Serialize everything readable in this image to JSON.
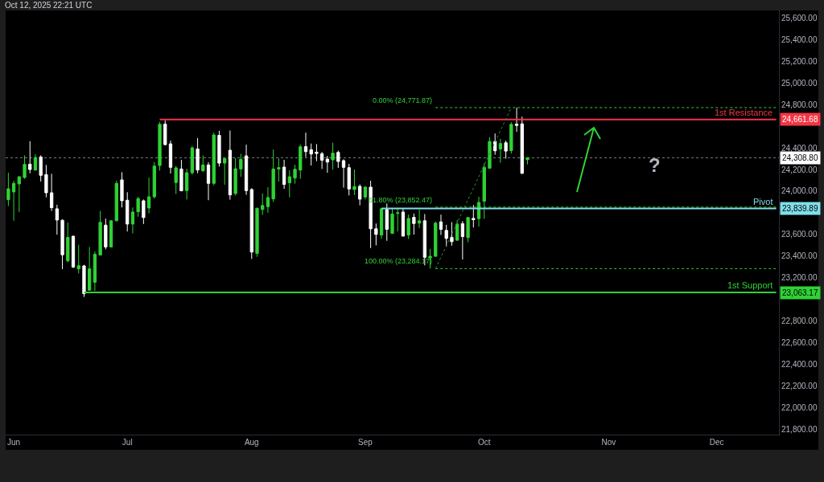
{
  "chart_data": {
    "type": "candlestick",
    "categories": [
      null,
      "Jun",
      null,
      null,
      null,
      null,
      null,
      null,
      null,
      null,
      null,
      null,
      null,
      null,
      null,
      null,
      null,
      null,
      null,
      null,
      null,
      null,
      "Jul",
      null,
      null,
      null,
      null,
      null,
      null,
      null,
      null,
      null,
      null,
      null,
      null,
      null,
      null,
      null,
      null,
      null,
      null,
      null,
      null,
      null,
      null,
      "Aug",
      null,
      null,
      null,
      null,
      null,
      null,
      null,
      null,
      null,
      null,
      null,
      null,
      null,
      null,
      null,
      null,
      null,
      null,
      null,
      null,
      "Sep",
      null,
      null,
      null,
      null,
      null,
      null,
      null,
      null,
      null,
      null,
      null,
      null,
      null,
      null,
      null,
      null,
      null,
      null,
      null,
      null,
      null,
      "Oct",
      null,
      null,
      null,
      null,
      null,
      null,
      null,
      null,
      null,
      null,
      null,
      null,
      null,
      null,
      null,
      null,
      null,
      null,
      null,
      null,
      null,
      null,
      "Nov",
      null,
      null,
      null,
      null,
      null,
      null,
      null,
      null,
      null,
      null,
      null,
      null,
      null,
      null,
      null,
      null,
      null,
      null,
      null,
      "Dec",
      null,
      null,
      null,
      null,
      null,
      null,
      null,
      null,
      null,
      null,
      null
    ],
    "ohlc": [
      [
        23921,
        24170,
        23862,
        24022
      ],
      [
        23993,
        24096,
        23726,
        24072
      ],
      [
        24067,
        24138,
        23807,
        24133
      ],
      [
        24126,
        24331,
        24114,
        24247
      ],
      [
        24249,
        24462,
        24165,
        24200
      ],
      [
        24195,
        24341,
        24190,
        24311
      ],
      [
        24316,
        24331,
        24089,
        24146
      ],
      [
        24153,
        24242,
        23943,
        23985
      ],
      [
        23985,
        24160,
        23817,
        23847
      ],
      [
        23837,
        23874,
        23598,
        23733
      ],
      [
        23731,
        23740,
        23279,
        23412
      ],
      [
        23356,
        23711,
        23343,
        23573
      ],
      [
        23583,
        23590,
        23289,
        23299
      ],
      [
        23282,
        23504,
        23240,
        23311
      ],
      [
        23309,
        23319,
        23022,
        23052
      ],
      [
        23084,
        23484,
        23080,
        23282
      ],
      [
        23158,
        23442,
        23077,
        23417
      ],
      [
        23410,
        23817,
        23405,
        23711
      ],
      [
        23686,
        23746,
        23462,
        23484
      ],
      [
        23484,
        23730,
        23480,
        23726
      ],
      [
        23726,
        24096,
        23722,
        24072
      ],
      [
        24104,
        24175,
        23849,
        23911
      ],
      [
        23916,
        23990,
        23627,
        23696
      ],
      [
        23696,
        23849,
        23610,
        23807
      ],
      [
        23810,
        23948,
        23763,
        23931
      ],
      [
        23911,
        23923,
        23696,
        23756
      ],
      [
        23844,
        24126,
        23795,
        23948
      ],
      [
        23948,
        24269,
        23931,
        24232
      ],
      [
        24237,
        24640,
        24190,
        24617
      ],
      [
        24620,
        24652,
        24422,
        24430
      ],
      [
        24437,
        24467,
        24163,
        24220
      ],
      [
        24079,
        24232,
        23973,
        24215
      ],
      [
        24205,
        24289,
        23998,
        24003
      ],
      [
        24005,
        24207,
        23923,
        24170
      ],
      [
        24170,
        24417,
        24153,
        24400
      ],
      [
        24390,
        24491,
        24165,
        24195
      ],
      [
        24188,
        24331,
        24178,
        24242
      ],
      [
        24242,
        24267,
        23916,
        24072
      ],
      [
        24072,
        24541,
        24054,
        24519
      ],
      [
        24516,
        24558,
        24227,
        24259
      ],
      [
        24259,
        24311,
        24059,
        24301
      ],
      [
        24378,
        24560,
        23921,
        23965
      ],
      [
        23978,
        24306,
        23960,
        24207
      ],
      [
        24205,
        24346,
        24133,
        24294
      ],
      [
        24326,
        24430,
        23965,
        24005
      ],
      [
        24015,
        24027,
        23373,
        23437
      ],
      [
        23425,
        23846,
        23393,
        23842
      ],
      [
        23830,
        23978,
        23780,
        23867
      ],
      [
        23857,
        24037,
        23800,
        23941
      ],
      [
        23928,
        24385,
        23899,
        24205
      ],
      [
        24205,
        24304,
        24089,
        24217
      ],
      [
        24222,
        24289,
        24022,
        24062
      ],
      [
        24077,
        24193,
        23943,
        24133
      ],
      [
        24121,
        24244,
        24069,
        24202
      ],
      [
        24195,
        24430,
        24114,
        24410
      ],
      [
        24412,
        24541,
        24316,
        24365
      ],
      [
        24383,
        24440,
        24237,
        24343
      ],
      [
        24360,
        24435,
        24277,
        24348
      ],
      [
        24346,
        24363,
        24205,
        24286
      ],
      [
        24296,
        24326,
        24170,
        24269
      ],
      [
        24289,
        24447,
        24200,
        24351
      ],
      [
        24358,
        24375,
        24215,
        24274
      ],
      [
        24282,
        24294,
        24032,
        24220
      ],
      [
        24217,
        24252,
        23960,
        24020
      ],
      [
        24015,
        24200,
        23965,
        24042
      ],
      [
        24045,
        24062,
        23869,
        23926
      ],
      [
        23946,
        24047,
        23923,
        24037
      ],
      [
        24037,
        24096,
        23474,
        23652
      ],
      [
        23652,
        23701,
        23499,
        23600
      ],
      [
        23595,
        23842,
        23560,
        23837
      ],
      [
        23830,
        23886,
        23541,
        23647
      ],
      [
        23610,
        23837,
        23605,
        23788
      ],
      [
        23795,
        23837,
        23627,
        23800
      ],
      [
        23807,
        23842,
        23580,
        23585
      ],
      [
        23595,
        23783,
        23558,
        23748
      ],
      [
        23758,
        23793,
        23598,
        23701
      ],
      [
        23704,
        23830,
        23659,
        23726
      ],
      [
        23726,
        23788,
        23314,
        23388
      ],
      [
        23383,
        23467,
        23285,
        23398
      ],
      [
        23398,
        23719,
        23393,
        23704
      ],
      [
        23716,
        23783,
        23595,
        23647
      ],
      [
        23637,
        23689,
        23486,
        23563
      ],
      [
        23573,
        23714,
        23496,
        23533
      ],
      [
        23546,
        23733,
        23541,
        23696
      ],
      [
        23699,
        23723,
        23368,
        23580
      ],
      [
        23570,
        23760,
        23528,
        23756
      ],
      [
        23748,
        23872,
        23664,
        23736
      ],
      [
        23746,
        23948,
        23672,
        23896
      ],
      [
        23906,
        24257,
        23743,
        24220
      ],
      [
        24212,
        24499,
        24207,
        24459
      ],
      [
        24459,
        24533,
        24336,
        24373
      ],
      [
        24390,
        24484,
        24262,
        24440
      ],
      [
        24447,
        24467,
        24301,
        24370
      ],
      [
        24375,
        24637,
        24348,
        24617
      ],
      [
        24620,
        24772,
        24548,
        24607
      ],
      [
        24622,
        24689,
        24158,
        24165
      ],
      [
        24291,
        24312,
        24247,
        24309
      ],
      null,
      null,
      null,
      null,
      null,
      null,
      null,
      null,
      null,
      null,
      null,
      null,
      null,
      null,
      null,
      null,
      null,
      null,
      null,
      null,
      null,
      null,
      null,
      null,
      null,
      null,
      null,
      null,
      null,
      null,
      null,
      null,
      null,
      null,
      null,
      null,
      null,
      null,
      null,
      null,
      null,
      null,
      null,
      null,
      null,
      null
    ],
    "colors": [
      "#2fd235",
      "#2fd235",
      "#2fd235",
      "#2fd235",
      "#ffffff",
      "#2fd235",
      "#ffffff",
      "#ffffff",
      "#ffffff",
      "#ffffff",
      "#ffffff",
      "#2fd235",
      "#ffffff",
      "#2fd235",
      "#ffffff",
      "#2fd235",
      "#2fd235",
      "#2fd235",
      "#ffffff",
      "#2fd235",
      "#2fd235",
      "#ffffff",
      "#ffffff",
      "#2fd235",
      "#2fd235",
      "#ffffff",
      "#2fd235",
      "#2fd235",
      "#2fd235",
      "#ffffff",
      "#ffffff",
      "#2fd235",
      "#ffffff",
      "#2fd235",
      "#2fd235",
      "#ffffff",
      "#2fd235",
      "#ffffff",
      "#2fd235",
      "#ffffff",
      "#2fd235",
      "#ffffff",
      "#2fd235",
      "#2fd235",
      "#ffffff",
      "#ffffff",
      "#2fd235",
      "#2fd235",
      "#2fd235",
      "#2fd235",
      "#2fd235",
      "#ffffff",
      "#2fd235",
      "#2fd235",
      "#2fd235",
      "#ffffff",
      "#ffffff",
      "#ffffff",
      "#ffffff",
      "#ffffff",
      "#2fd235",
      "#ffffff",
      "#ffffff",
      "#ffffff",
      "#2fd235",
      "#ffffff",
      "#2fd235",
      "#ffffff",
      "#ffffff",
      "#2fd235",
      "#ffffff",
      "#2fd235",
      "#2fd235",
      "#ffffff",
      "#2fd235",
      "#ffffff",
      "#2fd235",
      "#ffffff",
      "#2fd235",
      "#2fd235",
      "#ffffff",
      "#ffffff",
      "#ffffff",
      "#2fd235",
      "#ffffff",
      "#2fd235",
      "#ffffff",
      "#2fd235",
      "#2fd235",
      "#2fd235",
      "#ffffff",
      "#2fd235",
      "#ffffff",
      "#2fd235",
      "#ffffff",
      "#ffffff",
      "#2fd235",
      null,
      null,
      null,
      null,
      null,
      null,
      null,
      null,
      null,
      null,
      null,
      null,
      null,
      null,
      null,
      null,
      null,
      null,
      null,
      null,
      null,
      null,
      null,
      null,
      null,
      null,
      null,
      null,
      null,
      null,
      null,
      null,
      null,
      null,
      null,
      null,
      null,
      null,
      null,
      null,
      null,
      null,
      null,
      null,
      null,
      null
    ],
    "series": [
      {
        "type": "line",
        "name": "1st Resistance",
        "color": "#f23645",
        "line_style": "solid",
        "values": [
          null,
          null,
          null,
          null,
          null,
          null,
          null,
          null,
          null,
          null,
          null,
          null,
          null,
          null,
          null,
          null,
          null,
          null,
          null,
          null,
          null,
          null,
          null,
          null,
          null,
          null,
          null,
          null,
          24661.68,
          24661.68,
          24661.68,
          24661.68,
          24661.68,
          24661.68,
          24661.68,
          24661.68,
          24661.68,
          24661.68,
          24661.68,
          24661.68,
          24661.68,
          24661.68,
          24661.68,
          24661.68,
          24661.68,
          24661.68,
          24661.68,
          24661.68,
          24661.68,
          24661.68,
          24661.68,
          24661.68,
          24661.68,
          24661.68,
          24661.68,
          24661.68,
          24661.68,
          24661.68,
          24661.68,
          24661.68,
          24661.68,
          24661.68,
          24661.68,
          24661.68,
          24661.68,
          24661.68,
          24661.68,
          24661.68,
          24661.68,
          24661.68,
          24661.68,
          24661.68,
          24661.68,
          24661.68,
          24661.68,
          24661.68,
          24661.68,
          24661.68,
          24661.68,
          24661.68,
          24661.68,
          24661.68,
          24661.68,
          24661.68,
          24661.68,
          24661.68,
          24661.68,
          24661.68,
          24661.68,
          24661.68,
          24661.68,
          24661.68,
          24661.68,
          24661.68,
          24661.68,
          24661.68,
          24661.68,
          24661.68,
          24661.68,
          24661.68,
          24661.68,
          24661.68,
          24661.68,
          24661.68,
          24661.68,
          24661.68,
          24661.68,
          24661.68,
          24661.68,
          24661.68,
          24661.68,
          24661.68,
          24661.68,
          24661.68,
          24661.68,
          24661.68,
          24661.68,
          24661.68,
          24661.68,
          24661.68,
          24661.68,
          24661.68,
          24661.68,
          24661.68,
          24661.68,
          24661.68,
          24661.68,
          24661.68,
          24661.68,
          24661.68,
          24661.68,
          24661.68,
          24661.68,
          24661.68,
          24661.68,
          24661.68,
          24661.68,
          24661.68,
          24661.68,
          24661.68,
          24661.68,
          24661.68,
          24661.68
        ],
        "value_labels": [
          null,
          null,
          null,
          null,
          null,
          null,
          null,
          null,
          null,
          null,
          null,
          null,
          null,
          null,
          null,
          null,
          null,
          null,
          null,
          null,
          null,
          null,
          null,
          null,
          null,
          null,
          null,
          null,
          null,
          null,
          null,
          null,
          null,
          null,
          null,
          null,
          null,
          null,
          null,
          null,
          null,
          null,
          null,
          null,
          null,
          null,
          null,
          null,
          null,
          null,
          null,
          null,
          null,
          null,
          null,
          null,
          null,
          null,
          null,
          null,
          null,
          null,
          null,
          null,
          null,
          null,
          null,
          null,
          null,
          null,
          null,
          null,
          null,
          null,
          null,
          null,
          null,
          null,
          null,
          null,
          null,
          null,
          null,
          null,
          null,
          null,
          null,
          null,
          null,
          null,
          null,
          null,
          null,
          null,
          null,
          null,
          null,
          null,
          null,
          null,
          null,
          null,
          null,
          null,
          null,
          null,
          null,
          null,
          null,
          null,
          null,
          null,
          null,
          null,
          null,
          null,
          null,
          null,
          null,
          null,
          null,
          null,
          null,
          null,
          null,
          null,
          null,
          null,
          null,
          null,
          null,
          null,
          null,
          null,
          null,
          null,
          null,
          null,
          null,
          null,
          null,
          null,
          "24,661.68"
        ]
      },
      {
        "type": "line",
        "name": "Pivot",
        "color": "#80deea",
        "line_style": "solid",
        "values": [
          null,
          null,
          null,
          null,
          null,
          null,
          null,
          null,
          null,
          null,
          null,
          null,
          null,
          null,
          null,
          null,
          null,
          null,
          null,
          null,
          null,
          null,
          null,
          null,
          null,
          null,
          null,
          null,
          null,
          null,
          null,
          null,
          null,
          null,
          null,
          null,
          null,
          null,
          null,
          null,
          null,
          null,
          null,
          null,
          null,
          null,
          null,
          null,
          null,
          null,
          null,
          null,
          null,
          null,
          null,
          null,
          null,
          null,
          null,
          null,
          null,
          null,
          null,
          null,
          null,
          null,
          null,
          null,
          null,
          23839.89,
          23839.89,
          23839.89,
          23839.89,
          23839.89,
          23839.89,
          23839.89,
          23839.89,
          23839.89,
          23839.89,
          23839.89,
          23839.89,
          23839.89,
          23839.89,
          23839.89,
          23839.89,
          23839.89,
          23839.89,
          23839.89,
          23839.89,
          23839.89,
          23839.89,
          23839.89,
          23839.89,
          23839.89,
          23839.89,
          23839.89,
          23839.89,
          23839.89,
          23839.89,
          23839.89,
          23839.89,
          23839.89,
          23839.89,
          23839.89,
          23839.89,
          23839.89,
          23839.89,
          23839.89,
          23839.89,
          23839.89,
          23839.89,
          23839.89,
          23839.89,
          23839.89,
          23839.89,
          23839.89,
          23839.89,
          23839.89,
          23839.89,
          23839.89,
          23839.89,
          23839.89,
          23839.89,
          23839.89,
          23839.89,
          23839.89,
          23839.89,
          23839.89,
          23839.89,
          23839.89,
          23839.89,
          23839.89,
          23839.89,
          23839.89,
          23839.89,
          23839.89,
          23839.89,
          23839.89,
          23839.89,
          23839.89,
          23839.89,
          23839.89,
          23839.89
        ],
        "value_labels": [
          null,
          null,
          null,
          null,
          null,
          null,
          null,
          null,
          null,
          null,
          null,
          null,
          null,
          null,
          null,
          null,
          null,
          null,
          null,
          null,
          null,
          null,
          null,
          null,
          null,
          null,
          null,
          null,
          null,
          null,
          null,
          null,
          null,
          null,
          null,
          null,
          null,
          null,
          null,
          null,
          null,
          null,
          null,
          null,
          null,
          null,
          null,
          null,
          null,
          null,
          null,
          null,
          null,
          null,
          null,
          null,
          null,
          null,
          null,
          null,
          null,
          null,
          null,
          null,
          null,
          null,
          null,
          null,
          null,
          null,
          null,
          null,
          null,
          null,
          null,
          null,
          null,
          null,
          null,
          null,
          null,
          null,
          null,
          null,
          null,
          null,
          null,
          null,
          null,
          null,
          null,
          null,
          null,
          null,
          null,
          null,
          null,
          null,
          null,
          null,
          null,
          null,
          null,
          null,
          null,
          null,
          null,
          null,
          null,
          null,
          null,
          null,
          null,
          null,
          null,
          null,
          null,
          null,
          null,
          null,
          null,
          null,
          null,
          null,
          null,
          null,
          null,
          null,
          null,
          null,
          null,
          null,
          null,
          null,
          null,
          null,
          null,
          null,
          null,
          null,
          null,
          null,
          "23,839.89"
        ]
      },
      {
        "type": "line",
        "name": "1st Support",
        "color": "#2fd235",
        "line_style": "solid",
        "values": [
          null,
          null,
          null,
          null,
          null,
          null,
          null,
          null,
          null,
          null,
          null,
          null,
          null,
          null,
          23063.17,
          23063.17,
          23063.17,
          23063.17,
          23063.17,
          23063.17,
          23063.17,
          23063.17,
          23063.17,
          23063.17,
          23063.17,
          23063.17,
          23063.17,
          23063.17,
          23063.17,
          23063.17,
          23063.17,
          23063.17,
          23063.17,
          23063.17,
          23063.17,
          23063.17,
          23063.17,
          23063.17,
          23063.17,
          23063.17,
          23063.17,
          23063.17,
          23063.17,
          23063.17,
          23063.17,
          23063.17,
          23063.17,
          23063.17,
          23063.17,
          23063.17,
          23063.17,
          23063.17,
          23063.17,
          23063.17,
          23063.17,
          23063.17,
          23063.17,
          23063.17,
          23063.17,
          23063.17,
          23063.17,
          23063.17,
          23063.17,
          23063.17,
          23063.17,
          23063.17,
          23063.17,
          23063.17,
          23063.17,
          23063.17,
          23063.17,
          23063.17,
          23063.17,
          23063.17,
          23063.17,
          23063.17,
          23063.17,
          23063.17,
          23063.17,
          23063.17,
          23063.17,
          23063.17,
          23063.17,
          23063.17,
          23063.17,
          23063.17,
          23063.17,
          23063.17,
          23063.17,
          23063.17,
          23063.17,
          23063.17,
          23063.17,
          23063.17,
          23063.17,
          23063.17,
          23063.17,
          23063.17,
          23063.17,
          23063.17,
          23063.17,
          23063.17,
          23063.17,
          23063.17,
          23063.17,
          23063.17,
          23063.17,
          23063.17,
          23063.17,
          23063.17,
          23063.17,
          23063.17,
          23063.17,
          23063.17,
          23063.17,
          23063.17,
          23063.17,
          23063.17,
          23063.17,
          23063.17,
          23063.17,
          23063.17,
          23063.17,
          23063.17,
          23063.17,
          23063.17,
          23063.17,
          23063.17,
          23063.17,
          23063.17,
          23063.17,
          23063.17,
          23063.17,
          23063.17,
          23063.17,
          23063.17,
          23063.17,
          23063.17,
          23063.17,
          23063.17,
          23063.17,
          23063.17,
          23063.17
        ],
        "value_labels": [
          null,
          null,
          null,
          null,
          null,
          null,
          null,
          null,
          null,
          null,
          null,
          null,
          null,
          null,
          null,
          null,
          null,
          null,
          null,
          null,
          null,
          null,
          null,
          null,
          null,
          null,
          null,
          null,
          null,
          null,
          null,
          null,
          null,
          null,
          null,
          null,
          null,
          null,
          null,
          null,
          null,
          null,
          null,
          null,
          null,
          null,
          null,
          null,
          null,
          null,
          null,
          null,
          null,
          null,
          null,
          null,
          null,
          null,
          null,
          null,
          null,
          null,
          null,
          null,
          null,
          null,
          null,
          null,
          null,
          null,
          null,
          null,
          null,
          null,
          null,
          null,
          null,
          null,
          null,
          null,
          null,
          null,
          null,
          null,
          null,
          null,
          null,
          null,
          null,
          null,
          null,
          null,
          null,
          null,
          null,
          null,
          null,
          null,
          null,
          null,
          null,
          null,
          null,
          null,
          null,
          null,
          null,
          null,
          null,
          null,
          null,
          null,
          null,
          null,
          null,
          null,
          null,
          null,
          null,
          null,
          null,
          null,
          null,
          null,
          null,
          null,
          null,
          null,
          null,
          null,
          null,
          null,
          null,
          null,
          null,
          null,
          null,
          null,
          null,
          null,
          null,
          null,
          "23,063.17"
        ]
      },
      {
        "type": "line",
        "name": "0.00% (24,771.87)",
        "color": "#2fd235",
        "line_style": "dotted",
        "values": [
          null,
          null,
          null,
          null,
          null,
          null,
          null,
          null,
          null,
          null,
          null,
          null,
          null,
          null,
          null,
          null,
          null,
          null,
          null,
          null,
          null,
          null,
          null,
          null,
          null,
          null,
          null,
          null,
          null,
          null,
          null,
          null,
          null,
          null,
          null,
          null,
          null,
          null,
          null,
          null,
          null,
          null,
          null,
          null,
          null,
          null,
          null,
          null,
          null,
          null,
          null,
          null,
          null,
          null,
          null,
          null,
          null,
          null,
          null,
          null,
          null,
          null,
          null,
          null,
          null,
          null,
          null,
          null,
          null,
          null,
          null,
          null,
          null,
          null,
          null,
          null,
          null,
          null,
          null,
          24771.87,
          24771.87,
          24771.87,
          24771.87,
          24771.87,
          24771.87,
          24771.87,
          24771.87,
          24771.87,
          24771.87,
          24771.87,
          24771.87,
          24771.87,
          24771.87,
          24771.87,
          24771.87,
          24771.87,
          24771.87,
          24771.87,
          24771.87,
          24771.87,
          24771.87,
          24771.87,
          24771.87,
          24771.87,
          24771.87,
          24771.87,
          24771.87,
          24771.87,
          24771.87,
          24771.87,
          24771.87,
          24771.87,
          24771.87,
          24771.87,
          24771.87,
          24771.87,
          24771.87,
          24771.87,
          24771.87,
          24771.87,
          24771.87,
          24771.87,
          24771.87,
          24771.87,
          24771.87,
          24771.87,
          24771.87,
          24771.87,
          24771.87,
          24771.87,
          24771.87,
          24771.87,
          24771.87,
          24771.87,
          24771.87,
          24771.87,
          24771.87,
          24771.87,
          24771.87,
          24771.87,
          24771.87,
          24771.87,
          24771.87
        ]
      },
      {
        "type": "line",
        "name": "61.80% (23,852.47)",
        "color": "#2fd235",
        "line_style": "dotted",
        "values": [
          null,
          null,
          null,
          null,
          null,
          null,
          null,
          null,
          null,
          null,
          null,
          null,
          null,
          null,
          null,
          null,
          null,
          null,
          null,
          null,
          null,
          null,
          null,
          null,
          null,
          null,
          null,
          null,
          null,
          null,
          null,
          null,
          null,
          null,
          null,
          null,
          null,
          null,
          null,
          null,
          null,
          null,
          null,
          null,
          null,
          null,
          null,
          null,
          null,
          null,
          null,
          null,
          null,
          null,
          null,
          null,
          null,
          null,
          null,
          null,
          null,
          null,
          null,
          null,
          null,
          null,
          null,
          null,
          null,
          null,
          null,
          null,
          null,
          null,
          null,
          null,
          null,
          null,
          null,
          23852.47,
          23852.47,
          23852.47,
          23852.47,
          23852.47,
          23852.47,
          23852.47,
          23852.47,
          23852.47,
          23852.47,
          23852.47,
          23852.47,
          23852.47,
          23852.47,
          23852.47,
          23852.47,
          23852.47,
          23852.47,
          23852.47,
          23852.47,
          23852.47,
          23852.47,
          23852.47,
          23852.47,
          23852.47,
          23852.47,
          23852.47,
          23852.47,
          23852.47,
          23852.47,
          23852.47,
          23852.47,
          23852.47,
          23852.47,
          23852.47,
          23852.47,
          23852.47,
          23852.47,
          23852.47,
          23852.47,
          23852.47,
          23852.47,
          23852.47,
          23852.47,
          23852.47,
          23852.47,
          23852.47,
          23852.47,
          23852.47,
          23852.47,
          23852.47,
          23852.47,
          23852.47,
          23852.47,
          23852.47,
          23852.47,
          23852.47,
          23852.47,
          23852.47,
          23852.47,
          23852.47,
          23852.47,
          23852.47,
          23852.47
        ]
      },
      {
        "type": "line",
        "name": "100.00% (23,284.17)",
        "color": "#2fd235",
        "line_style": "dotted",
        "values": [
          null,
          null,
          null,
          null,
          null,
          null,
          null,
          null,
          null,
          null,
          null,
          null,
          null,
          null,
          null,
          null,
          null,
          null,
          null,
          null,
          null,
          null,
          null,
          null,
          null,
          null,
          null,
          null,
          null,
          null,
          null,
          null,
          null,
          null,
          null,
          null,
          null,
          null,
          null,
          null,
          null,
          null,
          null,
          null,
          null,
          null,
          null,
          null,
          null,
          null,
          null,
          null,
          null,
          null,
          null,
          null,
          null,
          null,
          null,
          null,
          null,
          null,
          null,
          null,
          null,
          null,
          null,
          null,
          null,
          null,
          null,
          null,
          null,
          null,
          null,
          null,
          null,
          null,
          null,
          23284.17,
          23284.17,
          23284.17,
          23284.17,
          23284.17,
          23284.17,
          23284.17,
          23284.17,
          23284.17,
          23284.17,
          23284.17,
          23284.17,
          23284.17,
          23284.17,
          23284.17,
          23284.17,
          23284.17,
          23284.17,
          23284.17,
          23284.17,
          23284.17,
          23284.17,
          23284.17,
          23284.17,
          23284.17,
          23284.17,
          23284.17,
          23284.17,
          23284.17,
          23284.17,
          23284.17,
          23284.17,
          23284.17,
          23284.17,
          23284.17,
          23284.17,
          23284.17,
          23284.17,
          23284.17,
          23284.17,
          23284.17,
          23284.17,
          23284.17,
          23284.17,
          23284.17,
          23284.17,
          23284.17,
          23284.17,
          23284.17,
          23284.17,
          23284.17,
          23284.17,
          23284.17,
          23284.17,
          23284.17,
          23284.17,
          23284.17,
          23284.17,
          23284.17,
          23284.17,
          23284.17,
          23284.17,
          23284.17,
          23284.17
        ]
      },
      {
        "type": "line",
        "color": "#2a8f35",
        "line_style": "dotted",
        "values": [
          null,
          null,
          null,
          null,
          null,
          null,
          null,
          null,
          null,
          null,
          null,
          null,
          null,
          null,
          null,
          null,
          null,
          null,
          null,
          null,
          null,
          null,
          null,
          null,
          null,
          null,
          null,
          null,
          null,
          null,
          null,
          null,
          null,
          null,
          null,
          null,
          null,
          null,
          null,
          null,
          null,
          null,
          null,
          null,
          null,
          null,
          null,
          null,
          null,
          null,
          null,
          null,
          null,
          null,
          null,
          null,
          null,
          null,
          null,
          null,
          null,
          null,
          null,
          null,
          null,
          null,
          null,
          null,
          null,
          null,
          null,
          null,
          null,
          null,
          null,
          null,
          null,
          null,
          null,
          23284.17,
          null,
          null,
          null,
          null,
          null,
          null,
          null,
          null,
          null,
          null,
          null,
          null,
          null,
          24771.87,
          null,
          null,
          null,
          null,
          null,
          null,
          null,
          null,
          null,
          null,
          null,
          null,
          null,
          null,
          null,
          null,
          null,
          null,
          null,
          null,
          null,
          null,
          null,
          null,
          null,
          null,
          null,
          null,
          null,
          null,
          null,
          null,
          null,
          null,
          null,
          null,
          null,
          null,
          null,
          null,
          null,
          null,
          null,
          null,
          null,
          null,
          null,
          null,
          null
        ]
      }
    ],
    "ref_lines": [
      {
        "axis": "y",
        "value": 24308.8,
        "label": "24,308.80",
        "color": "#ffffff",
        "line_style": "dotted"
      }
    ],
    "annotations": [
      "Oct 12, 2025 22:21 UTC",
      "?"
    ],
    "ylim": [
      21750,
      25670
    ],
    "yticks": [
      {
        "value": 21800,
        "label": "21,800.00"
      },
      {
        "value": 22000,
        "label": "22,000.00"
      },
      {
        "value": 22200,
        "label": "22,200.00"
      },
      {
        "value": 22400,
        "label": "22,400.00"
      },
      {
        "value": 22600,
        "label": "22,600.00"
      },
      {
        "value": 22800,
        "label": "22,800.00"
      },
      {
        "value": 23200,
        "label": "23,200.00"
      },
      {
        "value": 23400,
        "label": "23,400.00"
      },
      {
        "value": 23600,
        "label": "23,600.00"
      },
      {
        "value": 24000,
        "label": "24,000.00"
      },
      {
        "value": 24200,
        "label": "24,200.00"
      },
      {
        "value": 24400,
        "label": "24,400.00"
      },
      {
        "value": 24800,
        "label": "24,800.00"
      },
      {
        "value": 25000,
        "label": "25,000.00"
      },
      {
        "value": 25200,
        "label": "25,200.00"
      },
      {
        "value": 25400,
        "label": "25,400.00"
      },
      {
        "value": 25600,
        "label": "25,600.00"
      }
    ]
  }
}
